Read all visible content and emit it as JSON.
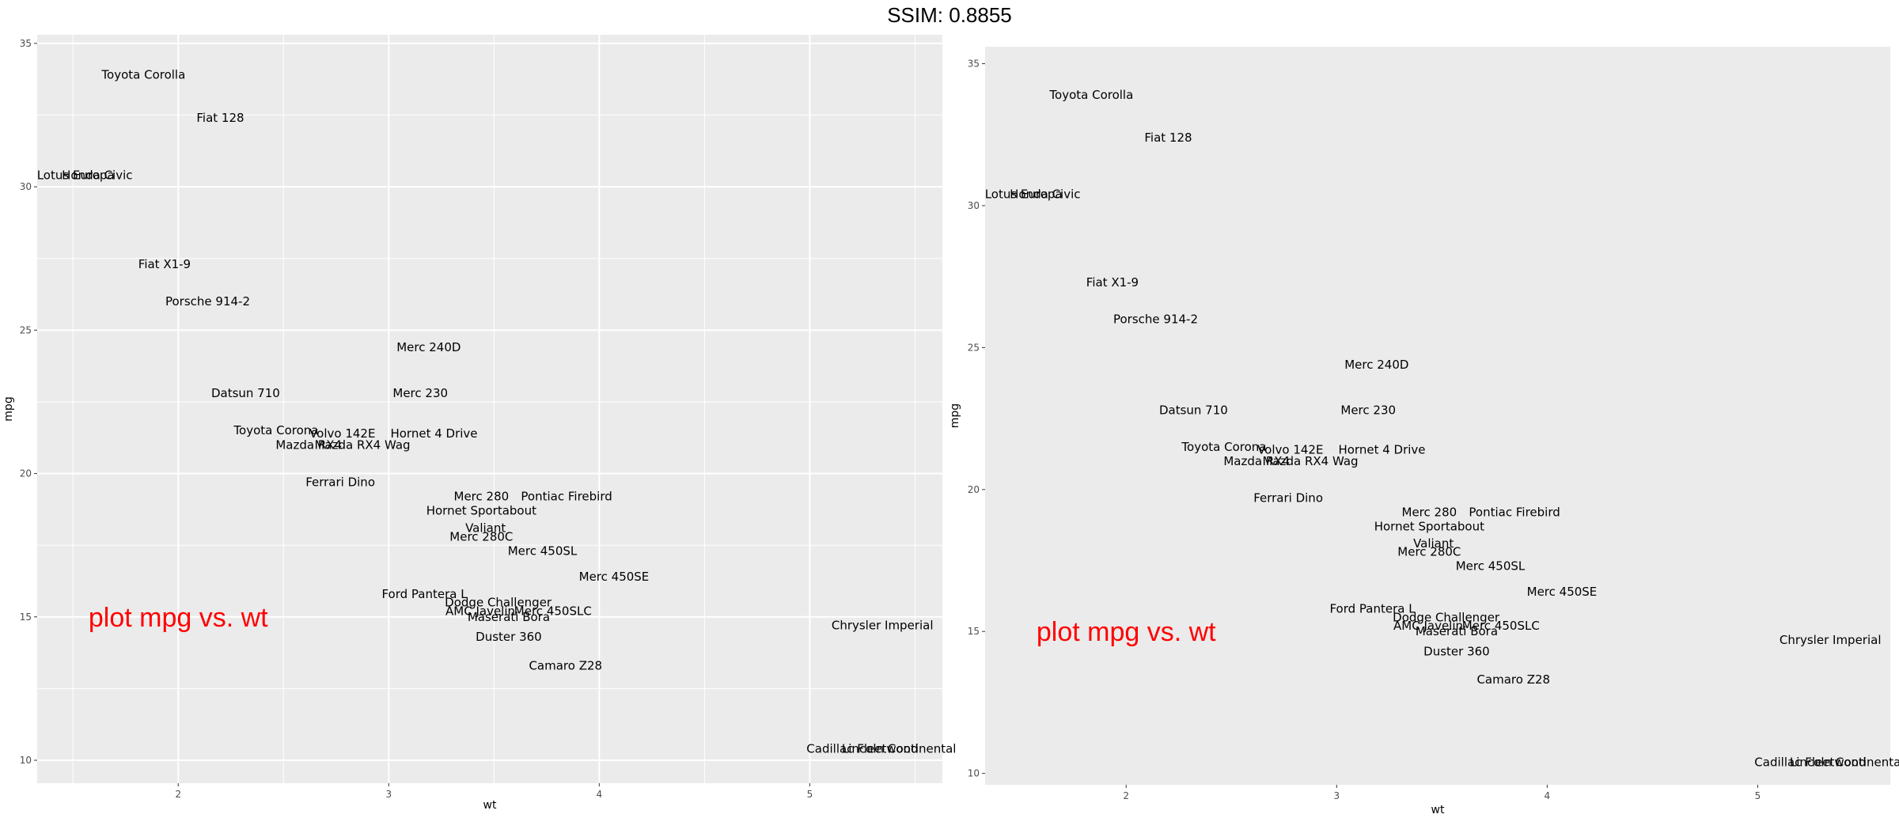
{
  "header": {
    "title": "SSIM: 0.8855"
  },
  "colors": {
    "panel_bg": "#ebebeb",
    "grid": "#ffffff",
    "annotation": "#ff0000",
    "tick_text": "#4d4d4d"
  },
  "chart_data": [
    {
      "type": "scatter",
      "xlabel": "wt",
      "ylabel": "mpg",
      "xlim": [
        1.33,
        5.63
      ],
      "ylim": [
        9.2,
        35.3
      ],
      "xticks": [
        2,
        3,
        4,
        5
      ],
      "yticks": [
        10,
        15,
        20,
        25,
        30,
        35
      ],
      "grid": true,
      "annotation": {
        "text": "plot mpg vs. wt",
        "x": 2.0,
        "y": 15
      },
      "points": [
        {
          "label": "Mazda RX4",
          "x": 2.62,
          "y": 21.0
        },
        {
          "label": "Mazda RX4 Wag",
          "x": 2.875,
          "y": 21.0
        },
        {
          "label": "Datsun 710",
          "x": 2.32,
          "y": 22.8
        },
        {
          "label": "Hornet 4 Drive",
          "x": 3.215,
          "y": 21.4
        },
        {
          "label": "Hornet Sportabout",
          "x": 3.44,
          "y": 18.7
        },
        {
          "label": "Valiant",
          "x": 3.46,
          "y": 18.1
        },
        {
          "label": "Duster 360",
          "x": 3.57,
          "y": 14.3
        },
        {
          "label": "Merc 240D",
          "x": 3.19,
          "y": 24.4
        },
        {
          "label": "Merc 230",
          "x": 3.15,
          "y": 22.8
        },
        {
          "label": "Merc 280",
          "x": 3.44,
          "y": 19.2
        },
        {
          "label": "Merc 280C",
          "x": 3.44,
          "y": 17.8
        },
        {
          "label": "Merc 450SE",
          "x": 4.07,
          "y": 16.4
        },
        {
          "label": "Merc 450SL",
          "x": 3.73,
          "y": 17.3
        },
        {
          "label": "Merc 450SLC",
          "x": 3.78,
          "y": 15.2
        },
        {
          "label": "Cadillac Fleetwood",
          "x": 5.25,
          "y": 10.4
        },
        {
          "label": "Lincoln Continental",
          "x": 5.424,
          "y": 10.4
        },
        {
          "label": "Chrysler Imperial",
          "x": 5.345,
          "y": 14.7
        },
        {
          "label": "Fiat 128",
          "x": 2.2,
          "y": 32.4
        },
        {
          "label": "Honda Civic",
          "x": 1.615,
          "y": 30.4
        },
        {
          "label": "Toyota Corolla",
          "x": 1.835,
          "y": 33.9
        },
        {
          "label": "Toyota Corona",
          "x": 2.465,
          "y": 21.5
        },
        {
          "label": "Dodge Challenger",
          "x": 3.52,
          "y": 15.5
        },
        {
          "label": "AMC Javelin",
          "x": 3.435,
          "y": 15.2
        },
        {
          "label": "Camaro Z28",
          "x": 3.84,
          "y": 13.3
        },
        {
          "label": "Pontiac Firebird",
          "x": 3.845,
          "y": 19.2
        },
        {
          "label": "Fiat X1-9",
          "x": 1.935,
          "y": 27.3
        },
        {
          "label": "Porsche 914-2",
          "x": 2.14,
          "y": 26.0
        },
        {
          "label": "Lotus Europa",
          "x": 1.513,
          "y": 30.4
        },
        {
          "label": "Ford Pantera L",
          "x": 3.17,
          "y": 15.8
        },
        {
          "label": "Ferrari Dino",
          "x": 2.77,
          "y": 19.7
        },
        {
          "label": "Maserati Bora",
          "x": 3.57,
          "y": 15.0
        },
        {
          "label": "Volvo 142E",
          "x": 2.78,
          "y": 21.4
        }
      ]
    },
    {
      "type": "scatter",
      "xlabel": "wt",
      "ylabel": "mpg",
      "xlim": [
        1.33,
        5.63
      ],
      "ylim": [
        9.6,
        35.6
      ],
      "xticks": [
        2,
        3,
        4,
        5
      ],
      "yticks": [
        10,
        15,
        20,
        25,
        30,
        35
      ],
      "grid": false,
      "annotation": {
        "text": "plot mpg vs. wt",
        "x": 2.0,
        "y": 15
      },
      "points": [
        {
          "label": "Mazda RX4",
          "x": 2.62,
          "y": 21.0
        },
        {
          "label": "Mazda RX4 Wag",
          "x": 2.875,
          "y": 21.0
        },
        {
          "label": "Datsun 710",
          "x": 2.32,
          "y": 22.8
        },
        {
          "label": "Hornet 4 Drive",
          "x": 3.215,
          "y": 21.4
        },
        {
          "label": "Hornet Sportabout",
          "x": 3.44,
          "y": 18.7
        },
        {
          "label": "Valiant",
          "x": 3.46,
          "y": 18.1
        },
        {
          "label": "Duster 360",
          "x": 3.57,
          "y": 14.3
        },
        {
          "label": "Merc 240D",
          "x": 3.19,
          "y": 24.4
        },
        {
          "label": "Merc 230",
          "x": 3.15,
          "y": 22.8
        },
        {
          "label": "Merc 280",
          "x": 3.44,
          "y": 19.2
        },
        {
          "label": "Merc 280C",
          "x": 3.44,
          "y": 17.8
        },
        {
          "label": "Merc 450SE",
          "x": 4.07,
          "y": 16.4
        },
        {
          "label": "Merc 450SL",
          "x": 3.73,
          "y": 17.3
        },
        {
          "label": "Merc 450SLC",
          "x": 3.78,
          "y": 15.2
        },
        {
          "label": "Cadillac Fleetwood",
          "x": 5.25,
          "y": 10.4
        },
        {
          "label": "Lincoln Continental",
          "x": 5.424,
          "y": 10.4
        },
        {
          "label": "Chrysler Imperial",
          "x": 5.345,
          "y": 14.7
        },
        {
          "label": "Fiat 128",
          "x": 2.2,
          "y": 32.4
        },
        {
          "label": "Honda Civic",
          "x": 1.615,
          "y": 30.4
        },
        {
          "label": "Toyota Corolla",
          "x": 1.835,
          "y": 33.9
        },
        {
          "label": "Toyota Corona",
          "x": 2.465,
          "y": 21.5
        },
        {
          "label": "Dodge Challenger",
          "x": 3.52,
          "y": 15.5
        },
        {
          "label": "AMC Javelin",
          "x": 3.435,
          "y": 15.2
        },
        {
          "label": "Camaro Z28",
          "x": 3.84,
          "y": 13.3
        },
        {
          "label": "Pontiac Firebird",
          "x": 3.845,
          "y": 19.2
        },
        {
          "label": "Fiat X1-9",
          "x": 1.935,
          "y": 27.3
        },
        {
          "label": "Porsche 914-2",
          "x": 2.14,
          "y": 26.0
        },
        {
          "label": "Lotus Europa",
          "x": 1.513,
          "y": 30.4
        },
        {
          "label": "Ford Pantera L",
          "x": 3.17,
          "y": 15.8
        },
        {
          "label": "Ferrari Dino",
          "x": 2.77,
          "y": 19.7
        },
        {
          "label": "Maserati Bora",
          "x": 3.57,
          "y": 15.0
        },
        {
          "label": "Volvo 142E",
          "x": 2.78,
          "y": 21.4
        }
      ]
    }
  ]
}
